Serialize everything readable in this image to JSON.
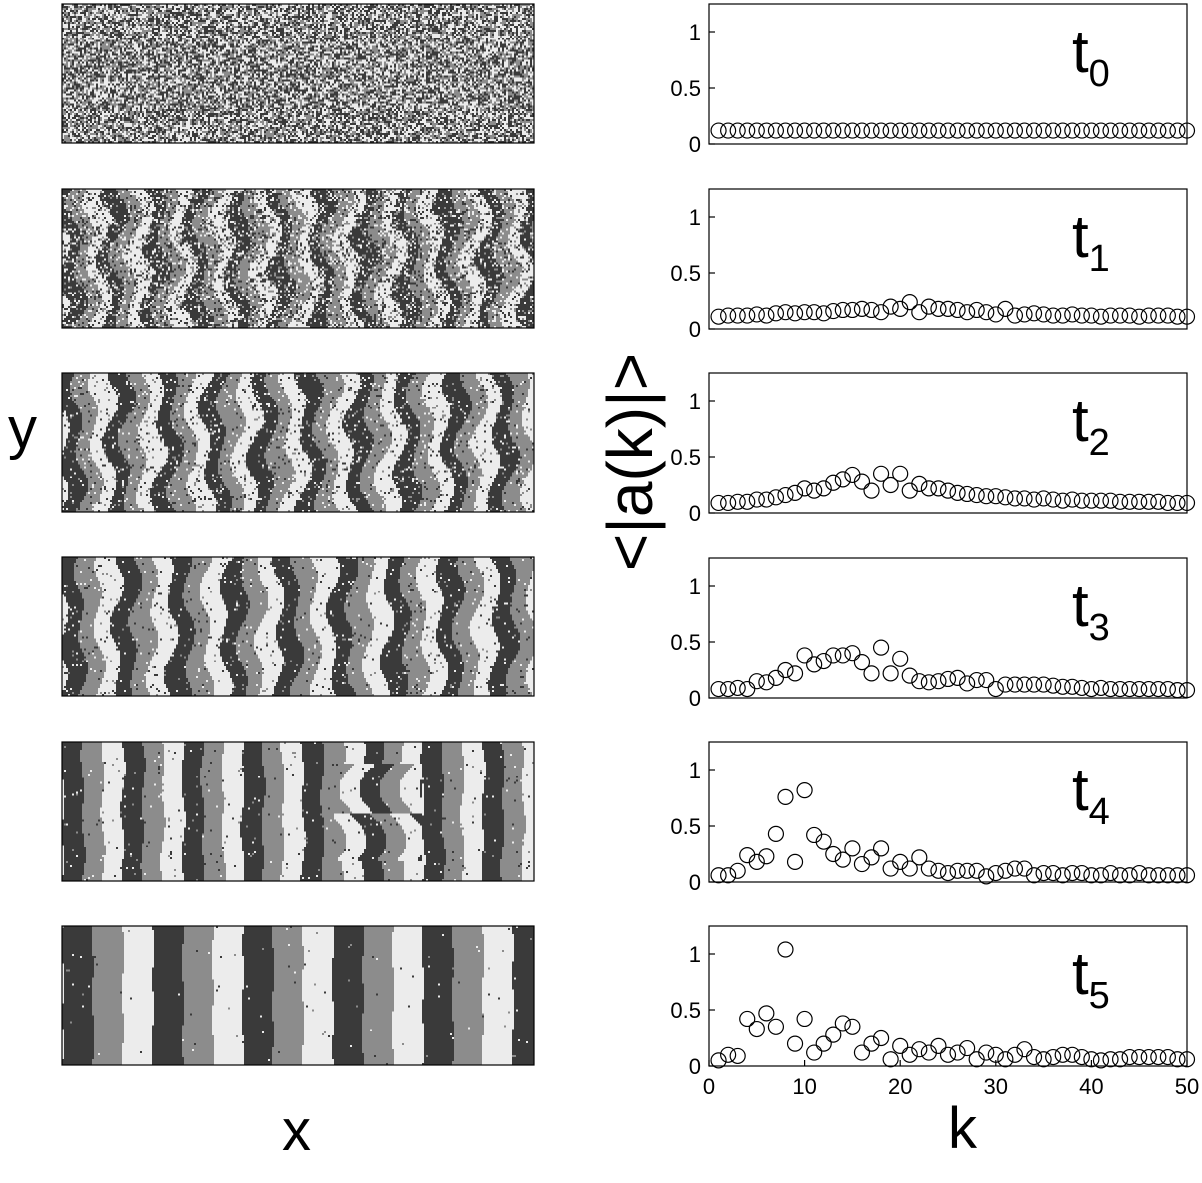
{
  "figure": {
    "left_ylabel": "y",
    "left_xlabel": "x",
    "right_ylabel": "<|a(k)|>",
    "right_xlabel": "k"
  },
  "patterns": [
    {
      "label": "t0",
      "style": "noise"
    },
    {
      "label": "t1",
      "style": "early-stripes"
    },
    {
      "label": "t2",
      "style": "forming-stripes"
    },
    {
      "label": "t3",
      "style": "wavy-stripes"
    },
    {
      "label": "t4",
      "style": "stripes-with-defect"
    },
    {
      "label": "t5",
      "style": "straight-stripes"
    }
  ],
  "gray_levels": [
    "#3a3a3a",
    "#8c8c8c",
    "#ececec"
  ],
  "chart_data": [
    {
      "type": "scatter",
      "panel_label": {
        "base": "t",
        "sub": "0"
      },
      "xlim": [
        0,
        50
      ],
      "ylim": [
        0,
        1.25
      ],
      "yticks": [
        0,
        0.5,
        1
      ],
      "yticklabels": [
        "0",
        "0.5",
        "1"
      ],
      "x": [
        1,
        2,
        3,
        4,
        5,
        6,
        7,
        8,
        9,
        10,
        11,
        12,
        13,
        14,
        15,
        16,
        17,
        18,
        19,
        20,
        21,
        22,
        23,
        24,
        25,
        26,
        27,
        28,
        29,
        30,
        31,
        32,
        33,
        34,
        35,
        36,
        37,
        38,
        39,
        40,
        41,
        42,
        43,
        44,
        45,
        46,
        47,
        48,
        49,
        50
      ],
      "y": [
        0.12,
        0.12,
        0.12,
        0.12,
        0.12,
        0.12,
        0.12,
        0.12,
        0.12,
        0.12,
        0.12,
        0.12,
        0.12,
        0.12,
        0.12,
        0.12,
        0.12,
        0.12,
        0.12,
        0.12,
        0.12,
        0.12,
        0.12,
        0.12,
        0.12,
        0.12,
        0.12,
        0.12,
        0.12,
        0.12,
        0.12,
        0.12,
        0.12,
        0.12,
        0.12,
        0.12,
        0.12,
        0.12,
        0.12,
        0.12,
        0.12,
        0.12,
        0.12,
        0.12,
        0.12,
        0.12,
        0.12,
        0.12,
        0.12,
        0.12
      ]
    },
    {
      "type": "scatter",
      "panel_label": {
        "base": "t",
        "sub": "1"
      },
      "xlim": [
        0,
        50
      ],
      "ylim": [
        0,
        1.25
      ],
      "yticks": [
        0,
        0.5,
        1
      ],
      "yticklabels": [
        "0",
        "0.5",
        "1"
      ],
      "x": [
        1,
        2,
        3,
        4,
        5,
        6,
        7,
        8,
        9,
        10,
        11,
        12,
        13,
        14,
        15,
        16,
        17,
        18,
        19,
        20,
        21,
        22,
        23,
        24,
        25,
        26,
        27,
        28,
        29,
        30,
        31,
        32,
        33,
        34,
        35,
        36,
        37,
        38,
        39,
        40,
        41,
        42,
        43,
        44,
        45,
        46,
        47,
        48,
        49,
        50
      ],
      "y": [
        0.11,
        0.12,
        0.12,
        0.12,
        0.13,
        0.12,
        0.14,
        0.15,
        0.14,
        0.15,
        0.15,
        0.14,
        0.16,
        0.17,
        0.17,
        0.18,
        0.17,
        0.15,
        0.2,
        0.18,
        0.24,
        0.15,
        0.2,
        0.18,
        0.18,
        0.17,
        0.15,
        0.17,
        0.15,
        0.13,
        0.18,
        0.12,
        0.13,
        0.14,
        0.13,
        0.12,
        0.12,
        0.13,
        0.12,
        0.12,
        0.11,
        0.12,
        0.12,
        0.12,
        0.11,
        0.12,
        0.12,
        0.12,
        0.11,
        0.11
      ]
    },
    {
      "type": "scatter",
      "panel_label": {
        "base": "t",
        "sub": "2"
      },
      "xlim": [
        0,
        50
      ],
      "ylim": [
        0,
        1.25
      ],
      "yticks": [
        0,
        0.5,
        1
      ],
      "yticklabels": [
        "0",
        "0.5",
        "1"
      ],
      "x": [
        1,
        2,
        3,
        4,
        5,
        6,
        7,
        8,
        9,
        10,
        11,
        12,
        13,
        14,
        15,
        16,
        17,
        18,
        19,
        20,
        21,
        22,
        23,
        24,
        25,
        26,
        27,
        28,
        29,
        30,
        31,
        32,
        33,
        34,
        35,
        36,
        37,
        38,
        39,
        40,
        41,
        42,
        43,
        44,
        45,
        46,
        47,
        48,
        49,
        50
      ],
      "y": [
        0.09,
        0.09,
        0.1,
        0.1,
        0.12,
        0.12,
        0.14,
        0.16,
        0.18,
        0.22,
        0.2,
        0.22,
        0.27,
        0.3,
        0.34,
        0.28,
        0.2,
        0.35,
        0.25,
        0.35,
        0.2,
        0.26,
        0.22,
        0.22,
        0.2,
        0.18,
        0.17,
        0.16,
        0.15,
        0.15,
        0.14,
        0.13,
        0.13,
        0.12,
        0.13,
        0.12,
        0.11,
        0.12,
        0.11,
        0.11,
        0.11,
        0.11,
        0.1,
        0.1,
        0.1,
        0.1,
        0.1,
        0.09,
        0.09,
        0.09
      ]
    },
    {
      "type": "scatter",
      "panel_label": {
        "base": "t",
        "sub": "3"
      },
      "xlim": [
        0,
        50
      ],
      "ylim": [
        0,
        1.25
      ],
      "yticks": [
        0,
        0.5,
        1
      ],
      "yticklabels": [
        "0",
        "0.5",
        "1"
      ],
      "x": [
        1,
        2,
        3,
        4,
        5,
        6,
        7,
        8,
        9,
        10,
        11,
        12,
        13,
        14,
        15,
        16,
        17,
        18,
        19,
        20,
        21,
        22,
        23,
        24,
        25,
        26,
        27,
        28,
        29,
        30,
        31,
        32,
        33,
        34,
        35,
        36,
        37,
        38,
        39,
        40,
        41,
        42,
        43,
        44,
        45,
        46,
        47,
        48,
        49,
        50
      ],
      "y": [
        0.08,
        0.08,
        0.09,
        0.08,
        0.15,
        0.14,
        0.18,
        0.25,
        0.22,
        0.38,
        0.3,
        0.33,
        0.38,
        0.38,
        0.4,
        0.32,
        0.22,
        0.45,
        0.22,
        0.35,
        0.2,
        0.15,
        0.14,
        0.15,
        0.17,
        0.18,
        0.13,
        0.16,
        0.16,
        0.08,
        0.12,
        0.12,
        0.12,
        0.12,
        0.12,
        0.11,
        0.1,
        0.1,
        0.09,
        0.08,
        0.09,
        0.08,
        0.08,
        0.08,
        0.08,
        0.08,
        0.08,
        0.08,
        0.07,
        0.07
      ]
    },
    {
      "type": "scatter",
      "panel_label": {
        "base": "t",
        "sub": "4"
      },
      "xlim": [
        0,
        50
      ],
      "ylim": [
        0,
        1.25
      ],
      "yticks": [
        0,
        0.5,
        1
      ],
      "yticklabels": [
        "0",
        "0.5",
        "1"
      ],
      "x": [
        1,
        2,
        3,
        4,
        5,
        6,
        7,
        8,
        9,
        10,
        11,
        12,
        13,
        14,
        15,
        16,
        17,
        18,
        19,
        20,
        21,
        22,
        23,
        24,
        25,
        26,
        27,
        28,
        29,
        30,
        31,
        32,
        33,
        34,
        35,
        36,
        37,
        38,
        39,
        40,
        41,
        42,
        43,
        44,
        45,
        46,
        47,
        48,
        49,
        50
      ],
      "y": [
        0.06,
        0.06,
        0.1,
        0.24,
        0.18,
        0.23,
        0.43,
        0.76,
        0.18,
        0.82,
        0.42,
        0.36,
        0.25,
        0.2,
        0.3,
        0.16,
        0.22,
        0.3,
        0.12,
        0.18,
        0.12,
        0.22,
        0.12,
        0.1,
        0.08,
        0.1,
        0.1,
        0.1,
        0.05,
        0.08,
        0.1,
        0.12,
        0.12,
        0.06,
        0.08,
        0.08,
        0.06,
        0.08,
        0.08,
        0.06,
        0.06,
        0.08,
        0.06,
        0.06,
        0.08,
        0.06,
        0.06,
        0.06,
        0.06,
        0.06
      ]
    },
    {
      "type": "scatter",
      "panel_label": {
        "base": "t",
        "sub": "5"
      },
      "xlim": [
        0,
        50
      ],
      "ylim": [
        0,
        1.25
      ],
      "yticks": [
        0,
        0.5,
        1
      ],
      "yticklabels": [
        "0",
        "0.5",
        "1"
      ],
      "xticks": [
        0,
        10,
        20,
        30,
        40,
        50
      ],
      "xticklabels": [
        "0",
        "10",
        "20",
        "30",
        "40",
        "50"
      ],
      "x": [
        1,
        2,
        3,
        4,
        5,
        6,
        7,
        8,
        9,
        10,
        11,
        12,
        13,
        14,
        15,
        16,
        17,
        18,
        19,
        20,
        21,
        22,
        23,
        24,
        25,
        26,
        27,
        28,
        29,
        30,
        31,
        32,
        33,
        34,
        35,
        36,
        37,
        38,
        39,
        40,
        41,
        42,
        43,
        44,
        45,
        46,
        47,
        48,
        49,
        50
      ],
      "y": [
        0.05,
        0.1,
        0.09,
        0.42,
        0.33,
        0.47,
        0.35,
        1.04,
        0.2,
        0.42,
        0.12,
        0.2,
        0.28,
        0.38,
        0.35,
        0.12,
        0.2,
        0.25,
        0.06,
        0.18,
        0.1,
        0.15,
        0.12,
        0.18,
        0.1,
        0.12,
        0.16,
        0.06,
        0.12,
        0.1,
        0.06,
        0.1,
        0.15,
        0.08,
        0.06,
        0.08,
        0.1,
        0.1,
        0.08,
        0.06,
        0.05,
        0.06,
        0.06,
        0.08,
        0.08,
        0.08,
        0.08,
        0.08,
        0.06,
        0.06
      ]
    }
  ]
}
